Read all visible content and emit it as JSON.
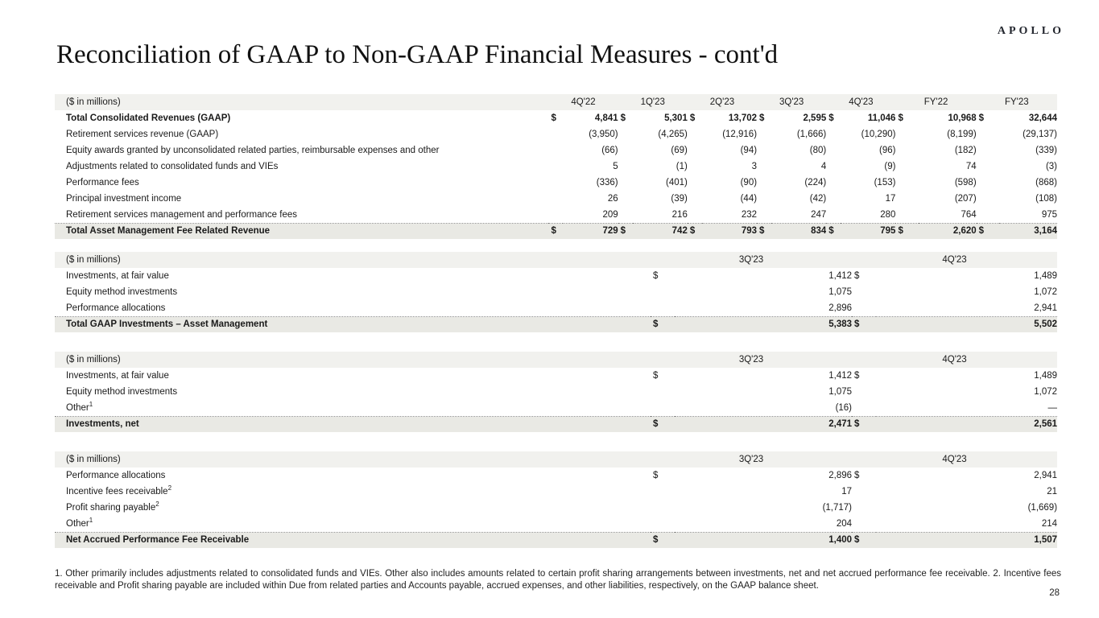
{
  "logo": "APOLLO",
  "title": "Reconciliation of GAAP to Non-GAAP Financial Measures - cont'd",
  "page_number": "28",
  "footnote": "1. Other primarily includes adjustments related to consolidated funds and VIEs. Other also includes amounts related to certain profit sharing arrangements between investments, net and net accrued performance fee receivable. 2. Incentive fees receivable and Profit sharing payable are included within Due from related parties and Accounts payable, accrued expenses, and other liabilities, respectively, on the GAAP balance sheet.",
  "tables": {
    "table1": {
      "unit_label": "($ in millions)",
      "columns": [
        "4Q'22",
        "1Q'23",
        "2Q'23",
        "3Q'23",
        "4Q'23",
        "FY'22",
        "FY'23"
      ],
      "rows": [
        {
          "label": "Total Consolidated Revenues (GAAP)",
          "bold": true,
          "dollar": true,
          "values": [
            "4,841",
            "5,301",
            "13,702",
            "2,595",
            "11,046",
            "10,968",
            "32,644"
          ]
        },
        {
          "label": "Retirement services revenue (GAAP)",
          "values": [
            "(3,950)",
            "(4,265)",
            "(12,916)",
            "(1,666)",
            "(10,290)",
            "(8,199)",
            "(29,137)"
          ]
        },
        {
          "label": "Equity awards granted by unconsolidated related parties, reimbursable expenses and other",
          "values": [
            "(66)",
            "(69)",
            "(94)",
            "(80)",
            "(96)",
            "(182)",
            "(339)"
          ]
        },
        {
          "label": "Adjustments related to consolidated funds and VIEs",
          "values": [
            "5",
            "(1)",
            "3",
            "4",
            "(9)",
            "74",
            "(3)"
          ]
        },
        {
          "label": "Performance fees",
          "values": [
            "(336)",
            "(401)",
            "(90)",
            "(224)",
            "(153)",
            "(598)",
            "(868)"
          ]
        },
        {
          "label": "Principal investment income",
          "values": [
            "26",
            "(39)",
            "(44)",
            "(42)",
            "17",
            "(207)",
            "(108)"
          ]
        },
        {
          "label": "Retirement services management and performance fees",
          "values": [
            "209",
            "216",
            "232",
            "247",
            "280",
            "764",
            "975"
          ]
        }
      ],
      "total_row": {
        "label": "Total Asset Management Fee Related Revenue",
        "values": [
          "729",
          "742",
          "793",
          "834",
          "795",
          "2,620",
          "3,164"
        ]
      }
    },
    "table2": {
      "unit_label": "($ in millions)",
      "columns": [
        "3Q'23",
        "4Q'23"
      ],
      "rows": [
        {
          "label": "Investments, at fair value",
          "dollar": true,
          "values": [
            "1,412",
            "1,489"
          ]
        },
        {
          "label": "Equity method investments",
          "values": [
            "1,075",
            "1,072"
          ]
        },
        {
          "label": "Performance allocations",
          "values": [
            "2,896",
            "2,941"
          ]
        }
      ],
      "total_row": {
        "label": "Total GAAP Investments – Asset Management",
        "values": [
          "5,383",
          "5,502"
        ]
      }
    },
    "table3": {
      "unit_label": "($ in millions)",
      "columns": [
        "3Q'23",
        "4Q'23"
      ],
      "rows": [
        {
          "label": "Investments, at fair value",
          "dollar": true,
          "values": [
            "1,412",
            "1,489"
          ]
        },
        {
          "label": "Equity method investments",
          "values": [
            "1,075",
            "1,072"
          ]
        },
        {
          "label": "Other",
          "sup": "1",
          "values": [
            "(16)",
            "—"
          ]
        }
      ],
      "total_row": {
        "label": "Investments, net",
        "values": [
          "2,471",
          "2,561"
        ]
      }
    },
    "table4": {
      "unit_label": "($ in millions)",
      "columns": [
        "3Q'23",
        "4Q'23"
      ],
      "rows": [
        {
          "label": "Performance allocations",
          "dollar": true,
          "values": [
            "2,896",
            "2,941"
          ]
        },
        {
          "label": "Incentive fees receivable",
          "sup": "2",
          "values": [
            "17",
            "21"
          ]
        },
        {
          "label": "Profit sharing payable",
          "sup": "2",
          "values": [
            "(1,717)",
            "(1,669)"
          ]
        },
        {
          "label": "Other",
          "sup": "1",
          "values": [
            "204",
            "214"
          ]
        }
      ],
      "total_row": {
        "label": "Net Accrued Performance Fee Receivable",
        "values": [
          "1,400",
          "1,507"
        ]
      }
    }
  }
}
